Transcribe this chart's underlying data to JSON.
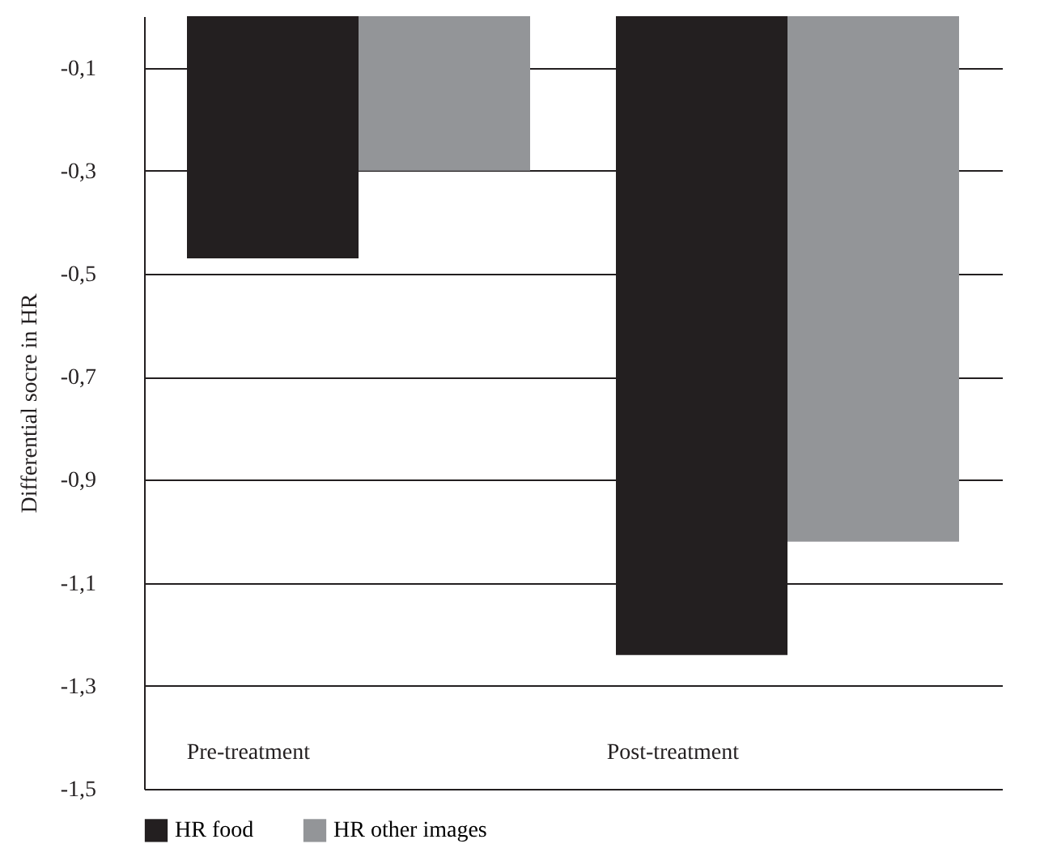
{
  "chart_data": {
    "type": "bar",
    "ylabel": "Differential socre in HR",
    "categories": [
      "Pre-treatment",
      "Post-treatment"
    ],
    "series": [
      {
        "name": "HR food",
        "color": "#231f20",
        "values": [
          -0.47,
          -1.24
        ]
      },
      {
        "name": "HR other images",
        "color": "#939598",
        "values": [
          -0.3,
          -1.02
        ]
      }
    ],
    "ylim": [
      -1.5,
      0
    ],
    "yticks": [
      {
        "value": -0.1,
        "label": "-0,1"
      },
      {
        "value": -0.3,
        "label": "-0,3"
      },
      {
        "value": -0.5,
        "label": "-0,5"
      },
      {
        "value": -0.7,
        "label": "-0,7"
      },
      {
        "value": -0.9,
        "label": "-0,9"
      },
      {
        "value": -1.1,
        "label": "-1,1"
      },
      {
        "value": -1.3,
        "label": "-1,3"
      },
      {
        "value": -1.5,
        "label": "-1,5"
      }
    ],
    "grid": "y",
    "legend": "bottom"
  }
}
